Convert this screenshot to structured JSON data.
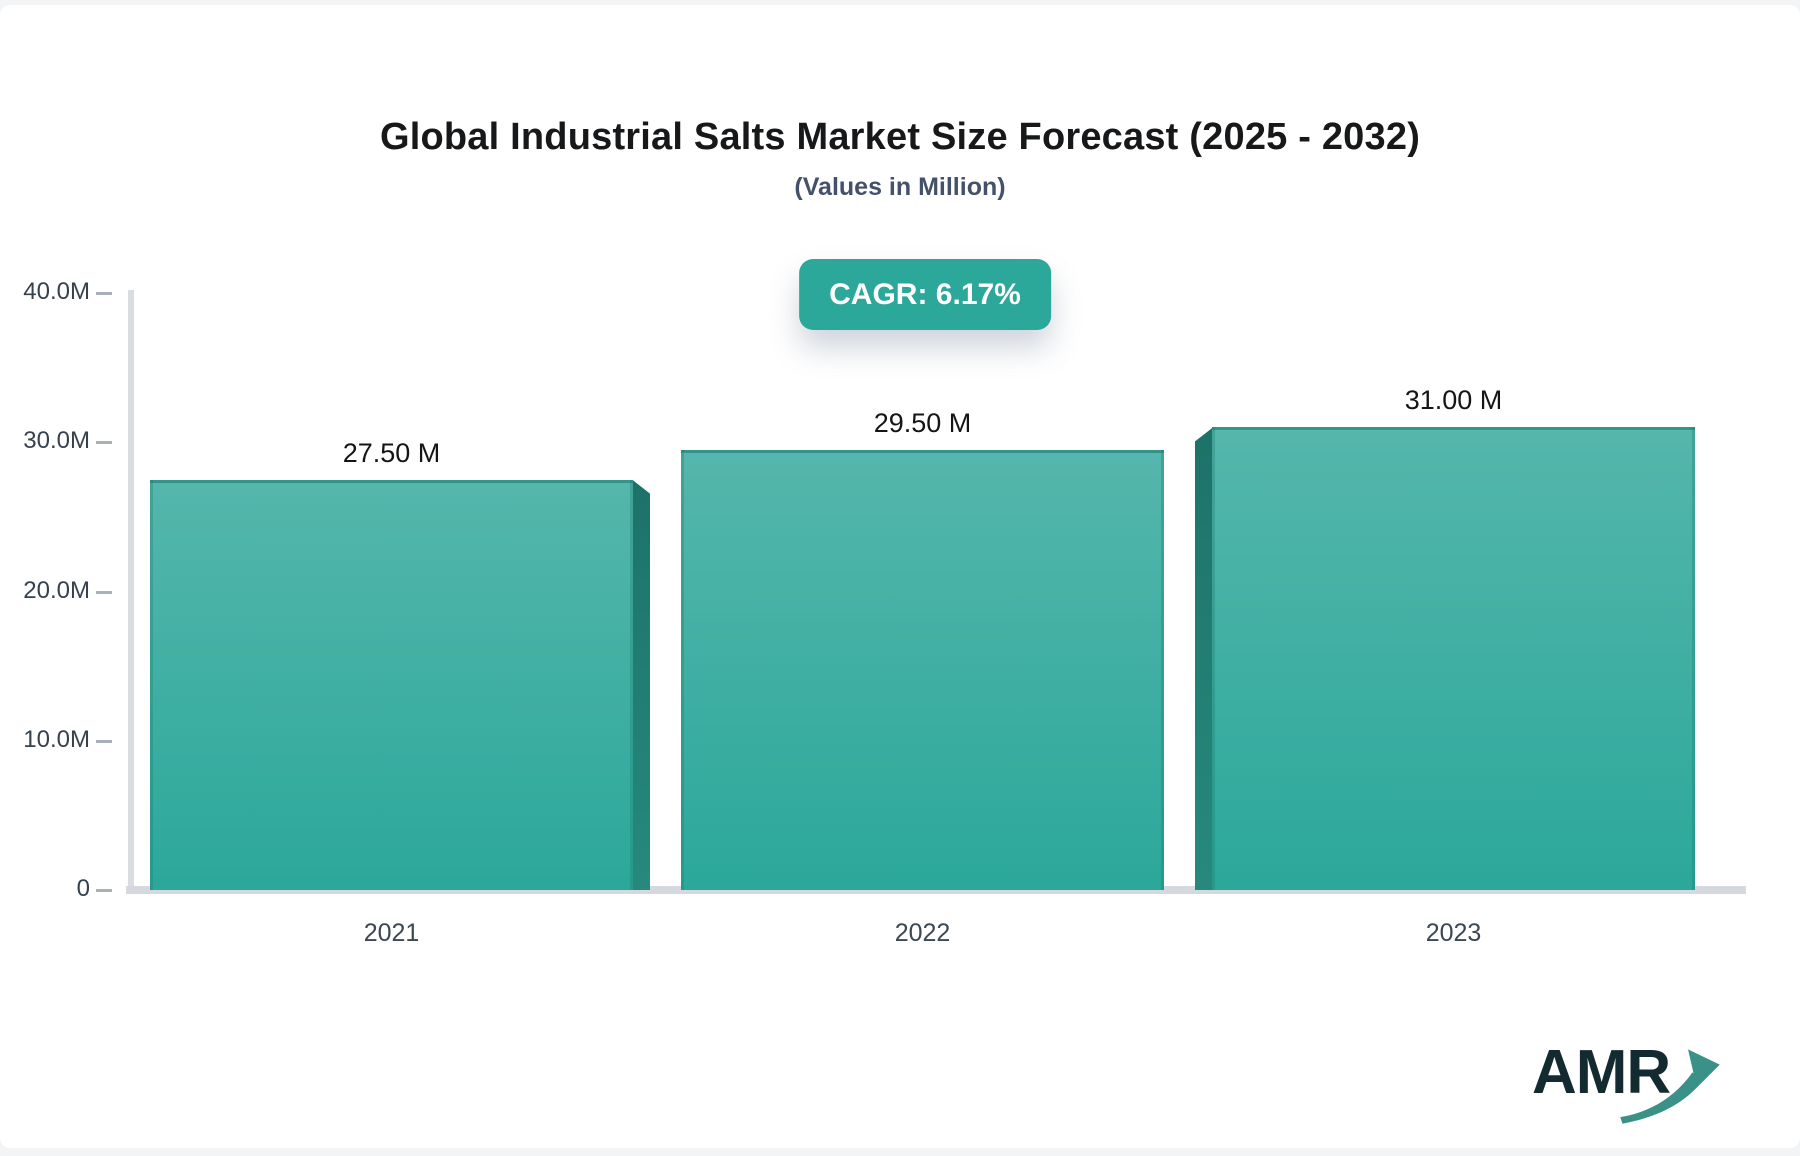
{
  "page": {
    "title": "Global Industrial Salts Market Size Forecast (2025 - 2032)",
    "subtitle": "(Values in Million)",
    "badge_label": "CAGR: 6.17%",
    "logo_text": "AMR"
  },
  "chart_data": {
    "type": "bar",
    "title": "Global Industrial Salts Market Size Forecast (2025 - 2032)",
    "subtitle": "(Values in Million)",
    "annotation_badge": "CAGR: 6.17%",
    "categories": [
      "2021",
      "2022",
      "2023"
    ],
    "values": [
      27.5,
      29.5,
      31.0
    ],
    "value_labels": [
      "27.50 M",
      "29.50 M",
      "31.00 M"
    ],
    "xlabel": "",
    "ylabel": "",
    "ylim": [
      0,
      40
    ],
    "yticks": [
      {
        "value": 0,
        "label": "0"
      },
      {
        "value": 10,
        "label": "10.0M"
      },
      {
        "value": 20,
        "label": "20.0M"
      },
      {
        "value": 30,
        "label": "30.0M"
      },
      {
        "value": 40,
        "label": "40.0M"
      }
    ],
    "grid": false,
    "legend": false,
    "colors": {
      "bar_gradient_top": "#55b6ac",
      "bar_gradient_bottom": "#2ba89a",
      "bar_edge": "#1d8075",
      "flap_dark_top": "#1d7268",
      "flap_dark_bottom": "#27897e",
      "badge_background": "#2ca89b",
      "badge_text": "#ffffff",
      "axis_line": "#d9dce1",
      "tick_text": "#37414d",
      "logo_navy": "#132a31",
      "logo_teal": "#3a9188"
    }
  }
}
